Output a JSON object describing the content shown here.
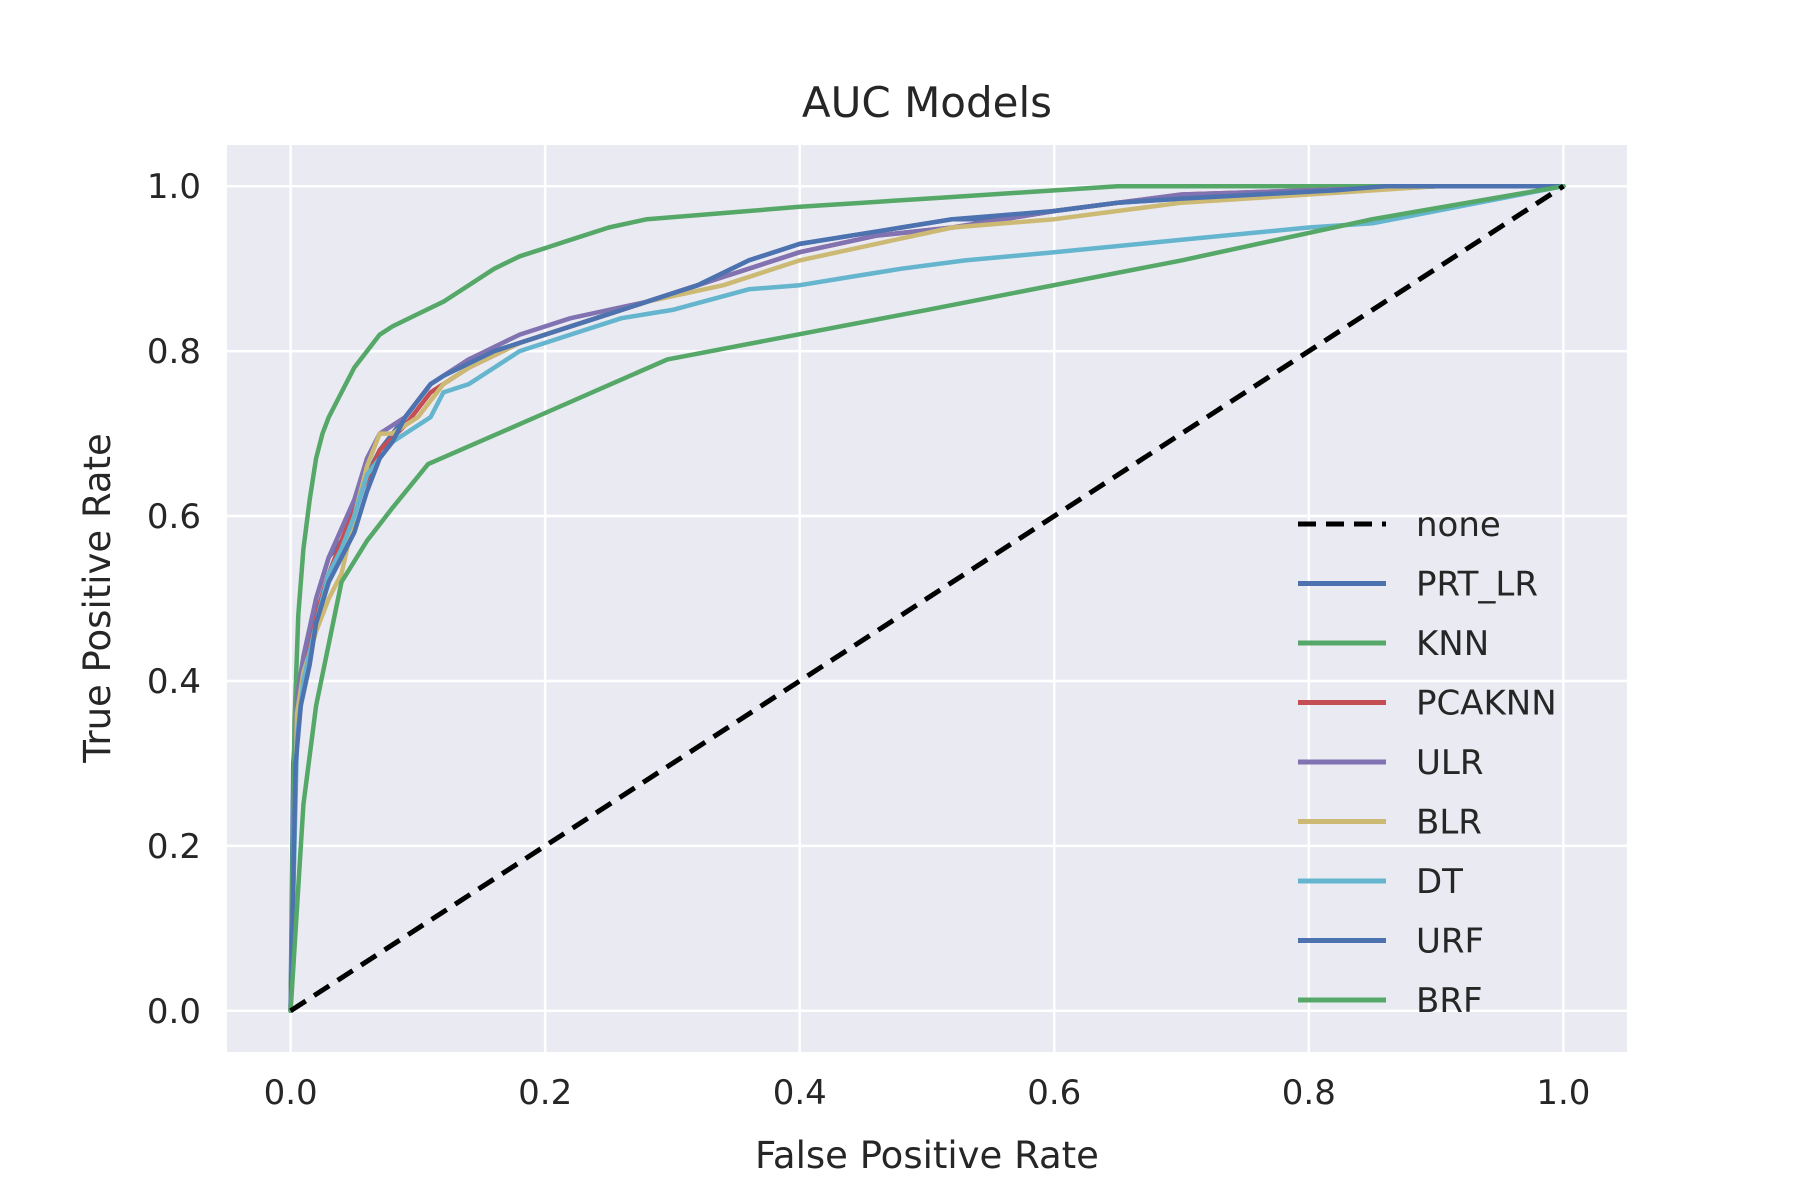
{
  "chart_data": {
    "type": "line",
    "title": "AUC Models",
    "xlabel": "False Positive Rate",
    "ylabel": "True Positive Rate",
    "xlim": [
      -0.05,
      1.05
    ],
    "ylim": [
      -0.05,
      1.05
    ],
    "xticks": [
      0.0,
      0.2,
      0.4,
      0.6,
      0.8,
      1.0
    ],
    "xtick_labels": [
      "0.0",
      "0.2",
      "0.4",
      "0.6",
      "0.8",
      "1.0"
    ],
    "yticks": [
      0.0,
      0.2,
      0.4,
      0.6,
      0.8,
      1.0
    ],
    "ytick_labels": [
      "0.0",
      "0.2",
      "0.4",
      "0.6",
      "0.8",
      "1.0"
    ],
    "grid": true,
    "legend_position": "lower-right",
    "background": "#eaeaf2",
    "series": [
      {
        "name": "none",
        "color": "#000000",
        "dashed": true,
        "x": [
          0,
          1
        ],
        "y": [
          0,
          1
        ]
      },
      {
        "name": "PRT_LR",
        "color": "#4c72b0",
        "x": [
          0,
          0.002,
          0.005,
          0.01,
          0.015,
          0.02,
          0.03,
          0.04,
          0.05,
          0.06,
          0.07,
          0.08,
          0.09,
          0.1,
          0.11,
          0.12,
          0.14,
          0.16,
          0.18,
          0.2,
          0.24,
          0.28,
          0.32,
          0.36,
          0.4,
          0.44,
          0.48,
          0.52,
          0.56,
          0.6,
          0.65,
          0.7,
          0.76,
          0.82,
          0.86,
          1.0
        ],
        "y": [
          0,
          0.3,
          0.36,
          0.41,
          0.45,
          0.5,
          0.55,
          0.57,
          0.6,
          0.65,
          0.68,
          0.7,
          0.72,
          0.74,
          0.76,
          0.77,
          0.79,
          0.8,
          0.81,
          0.82,
          0.84,
          0.86,
          0.88,
          0.91,
          0.93,
          0.94,
          0.95,
          0.96,
          0.96,
          0.97,
          0.98,
          0.985,
          0.99,
          0.995,
          1.0,
          1.0
        ]
      },
      {
        "name": "KNN",
        "color": "#55a868",
        "x": [
          0,
          0.003,
          0.006,
          0.01,
          0.015,
          0.02,
          0.025,
          0.03,
          0.04,
          0.05,
          0.06,
          0.07,
          0.08,
          0.1,
          0.12,
          0.14,
          0.16,
          0.18,
          0.2,
          0.22,
          0.25,
          0.28,
          0.32,
          0.36,
          0.4,
          0.45,
          0.5,
          0.55,
          0.6,
          0.65,
          0.7,
          0.8,
          0.9,
          1.0
        ],
        "y": [
          0,
          0.35,
          0.48,
          0.56,
          0.62,
          0.67,
          0.7,
          0.72,
          0.75,
          0.78,
          0.8,
          0.82,
          0.83,
          0.845,
          0.86,
          0.88,
          0.9,
          0.915,
          0.925,
          0.935,
          0.95,
          0.96,
          0.965,
          0.97,
          0.975,
          0.98,
          0.985,
          0.99,
          0.995,
          1.0,
          1.0,
          1.0,
          1.0,
          1.0
        ]
      },
      {
        "name": "PCAKNN",
        "color": "#c44e52",
        "x": [
          0,
          0.005,
          0.01,
          0.02,
          0.03,
          0.05,
          0.07,
          0.09,
          0.11,
          0.14,
          0.18,
          0.22,
          0.28,
          0.34,
          0.4,
          0.46,
          0.52,
          0.6,
          0.7,
          0.8,
          0.9,
          1.0
        ],
        "y": [
          0,
          0.37,
          0.42,
          0.48,
          0.53,
          0.61,
          0.68,
          0.71,
          0.75,
          0.78,
          0.81,
          0.83,
          0.86,
          0.89,
          0.92,
          0.94,
          0.95,
          0.97,
          0.99,
          0.995,
          1.0,
          1.0
        ]
      },
      {
        "name": "ULR",
        "color": "#8172b2",
        "x": [
          0,
          0.005,
          0.01,
          0.02,
          0.03,
          0.05,
          0.06,
          0.07,
          0.09,
          0.11,
          0.14,
          0.18,
          0.22,
          0.28,
          0.34,
          0.4,
          0.46,
          0.52,
          0.6,
          0.7,
          0.8,
          0.9,
          1.0
        ],
        "y": [
          0,
          0.38,
          0.43,
          0.5,
          0.55,
          0.62,
          0.67,
          0.7,
          0.72,
          0.76,
          0.79,
          0.82,
          0.84,
          0.86,
          0.89,
          0.92,
          0.94,
          0.95,
          0.97,
          0.99,
          0.995,
          1.0,
          1.0
        ]
      },
      {
        "name": "BLR",
        "color": "#ccb974",
        "x": [
          0,
          0.005,
          0.01,
          0.02,
          0.03,
          0.04,
          0.05,
          0.06,
          0.07,
          0.08,
          0.1,
          0.12,
          0.14,
          0.18,
          0.22,
          0.28,
          0.34,
          0.4,
          0.46,
          0.52,
          0.6,
          0.7,
          0.8,
          0.9,
          1.0
        ],
        "y": [
          0,
          0.36,
          0.41,
          0.46,
          0.5,
          0.53,
          0.6,
          0.66,
          0.7,
          0.7,
          0.72,
          0.76,
          0.78,
          0.81,
          0.83,
          0.86,
          0.88,
          0.91,
          0.93,
          0.95,
          0.96,
          0.98,
          0.99,
          1.0,
          1.0
        ]
      },
      {
        "name": "DT",
        "color": "#64b5cd",
        "x": [
          0,
          0.005,
          0.01,
          0.02,
          0.03,
          0.04,
          0.05,
          0.06,
          0.07,
          0.08,
          0.09,
          0.11,
          0.12,
          0.14,
          0.16,
          0.18,
          0.22,
          0.26,
          0.28,
          0.3,
          0.36,
          0.4,
          0.44,
          0.48,
          0.53,
          0.6,
          0.7,
          0.8,
          0.85,
          1.0
        ],
        "y": [
          0,
          0.33,
          0.4,
          0.47,
          0.53,
          0.56,
          0.6,
          0.65,
          0.67,
          0.69,
          0.7,
          0.72,
          0.75,
          0.76,
          0.78,
          0.8,
          0.82,
          0.84,
          0.845,
          0.85,
          0.875,
          0.88,
          0.89,
          0.9,
          0.91,
          0.92,
          0.935,
          0.95,
          0.955,
          1.0
        ]
      },
      {
        "name": "URF",
        "color": "#4c72b0",
        "x": [
          0,
          0.004,
          0.008,
          0.015,
          0.02,
          0.03,
          0.04,
          0.05,
          0.06,
          0.07,
          0.08,
          0.09,
          0.1,
          0.11,
          0.12,
          0.14,
          0.16,
          0.18,
          0.2,
          0.24,
          0.28,
          0.32,
          0.36,
          0.4,
          0.44,
          0.48,
          0.52,
          0.56,
          0.6,
          0.65,
          0.7,
          0.76,
          0.82,
          0.86,
          1.0
        ],
        "y": [
          0,
          0.3,
          0.37,
          0.42,
          0.47,
          0.52,
          0.55,
          0.58,
          0.63,
          0.67,
          0.69,
          0.72,
          0.74,
          0.76,
          0.77,
          0.785,
          0.8,
          0.81,
          0.82,
          0.84,
          0.86,
          0.88,
          0.91,
          0.93,
          0.94,
          0.95,
          0.96,
          0.965,
          0.97,
          0.98,
          0.985,
          0.99,
          0.995,
          1.0,
          1.0
        ]
      },
      {
        "name": "BRF",
        "color": "#55a868",
        "x": [
          0,
          0.01,
          0.02,
          0.04,
          0.06,
          0.08,
          0.108,
          0.2,
          0.296,
          0.5,
          0.7,
          0.85,
          1.0
        ],
        "y": [
          0,
          0.25,
          0.37,
          0.52,
          0.57,
          0.61,
          0.663,
          0.725,
          0.79,
          0.85,
          0.91,
          0.96,
          1.0
        ]
      }
    ]
  }
}
